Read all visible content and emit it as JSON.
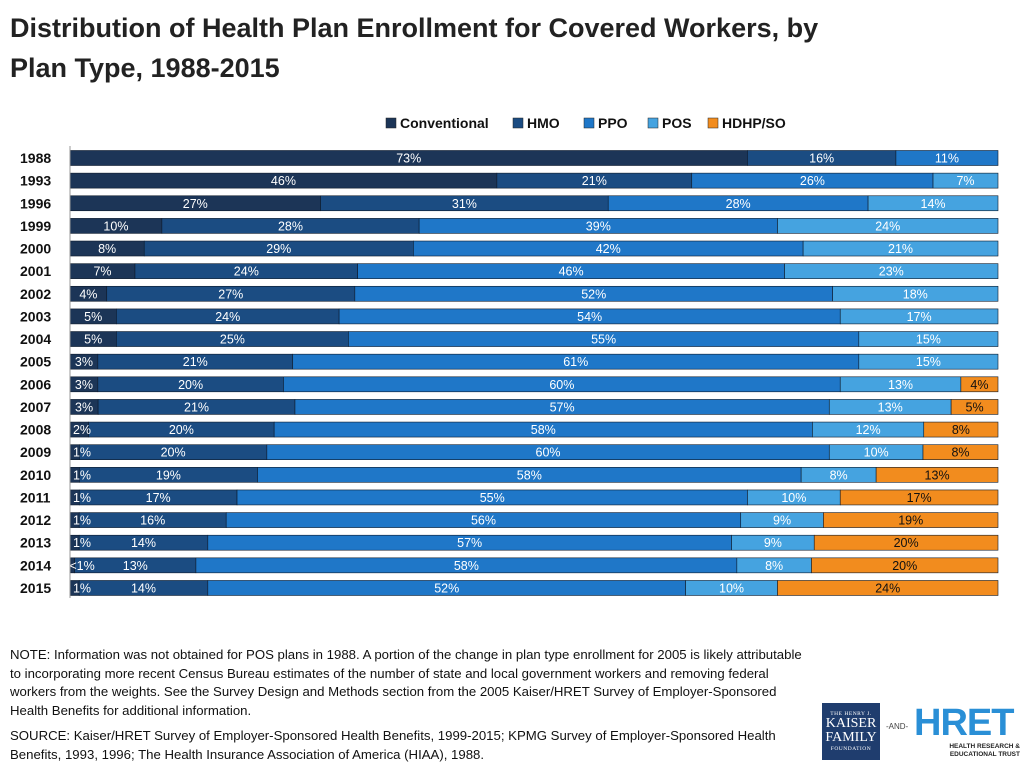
{
  "title": {
    "line1": "Distribution of Health Plan Enrollment for Covered Workers, by",
    "line2": "Plan Type, 1988-2015"
  },
  "chart_data": {
    "type": "bar",
    "orientation": "horizontal",
    "stacked": true,
    "percent_stacked": true,
    "title": "Distribution of Health Plan Enrollment for Covered Workers, by Plan Type, 1988-2015",
    "legend_position": "top",
    "categories": [
      "1988",
      "1993",
      "1996",
      "1999",
      "2000",
      "2001",
      "2002",
      "2003",
      "2004",
      "2005",
      "2006",
      "2007",
      "2008",
      "2009",
      "2010",
      "2011",
      "2012",
      "2013",
      "2014",
      "2015"
    ],
    "series": [
      {
        "name": "Conventional",
        "color": "#1c3557",
        "values": [
          73,
          46,
          27,
          10,
          8,
          7,
          4,
          5,
          5,
          3,
          3,
          3,
          2,
          1,
          1,
          1,
          1,
          1,
          0.5,
          1
        ],
        "labels": [
          "73%",
          "46%",
          "27%",
          "10%",
          "8%",
          "7%",
          "4%",
          "5%",
          "5%",
          "3%",
          "3%",
          "3%",
          "2%",
          "1%",
          "1%",
          "1%",
          "1%",
          "1%",
          "<1%",
          "1%"
        ]
      },
      {
        "name": "HMO",
        "color": "#1b4c82",
        "values": [
          16,
          21,
          31,
          28,
          29,
          24,
          27,
          24,
          25,
          21,
          20,
          21,
          20,
          20,
          19,
          17,
          16,
          14,
          13,
          14
        ],
        "labels": [
          "16%",
          "21%",
          "31%",
          "28%",
          "29%",
          "24%",
          "27%",
          "24%",
          "25%",
          "21%",
          "20%",
          "21%",
          "20%",
          "20%",
          "19%",
          "17%",
          "16%",
          "14%",
          "13%",
          "14%"
        ]
      },
      {
        "name": "PPO",
        "color": "#1f77c8",
        "values": [
          11,
          26,
          28,
          39,
          42,
          46,
          52,
          54,
          55,
          61,
          60,
          57,
          58,
          60,
          58,
          55,
          56,
          57,
          58,
          52
        ],
        "labels": [
          "11%",
          "26%",
          "28%",
          "39%",
          "42%",
          "46%",
          "52%",
          "54%",
          "55%",
          "61%",
          "60%",
          "57%",
          "58%",
          "60%",
          "58%",
          "55%",
          "56%",
          "57%",
          "58%",
          "52%"
        ]
      },
      {
        "name": "POS",
        "color": "#45a3e0",
        "values": [
          0,
          7,
          14,
          24,
          21,
          23,
          18,
          17,
          15,
          15,
          13,
          13,
          12,
          10,
          8,
          10,
          9,
          9,
          8,
          10
        ],
        "labels": [
          "",
          "7%",
          "14%",
          "24%",
          "21%",
          "23%",
          "18%",
          "17%",
          "15%",
          "15%",
          "13%",
          "13%",
          "12%",
          "10%",
          "8%",
          "10%",
          "9%",
          "9%",
          "8%",
          "10%"
        ]
      },
      {
        "name": "HDHP/SO",
        "color": "#f28c1e",
        "values": [
          0,
          0,
          0,
          0,
          0,
          0,
          0,
          0,
          0,
          0,
          4,
          5,
          8,
          8,
          13,
          17,
          19,
          20,
          20,
          24
        ],
        "labels": [
          "",
          "",
          "",
          "",
          "",
          "",
          "",
          "",
          "",
          "",
          "4%",
          "5%",
          "8%",
          "8%",
          "13%",
          "17%",
          "19%",
          "20%",
          "20%",
          "24%"
        ]
      }
    ],
    "xlim": [
      0,
      100
    ]
  },
  "note": "NOTE: Information was not obtained for POS plans in 1988.  A portion of the change in plan type enrollment for 2005 is likely attributable to incorporating more recent Census Bureau estimates of the number of state and local government workers and removing federal workers from the weights.  See the Survey Design and Methods section from the 2005 Kaiser/HRET Survey of Employer-Sponsored Health Benefits for additional information.",
  "source": "SOURCE:  Kaiser/HRET Survey of Employer-Sponsored Health Benefits, 1999-2015; KPMG Survey of Employer-Sponsored Health Benefits, 1993, 1996; The Health Insurance Association of America (HIAA), 1988.",
  "logos": {
    "kff_line1": "THE HENRY J.",
    "kff_line2": "KAISER",
    "kff_line3": "FAMILY",
    "kff_line4": "FOUNDATION",
    "and_text": "-AND-",
    "hret_mark": "HRET",
    "hret_sub1": "HEALTH RESEARCH &",
    "hret_sub2": "EDUCATIONAL TRUST"
  }
}
